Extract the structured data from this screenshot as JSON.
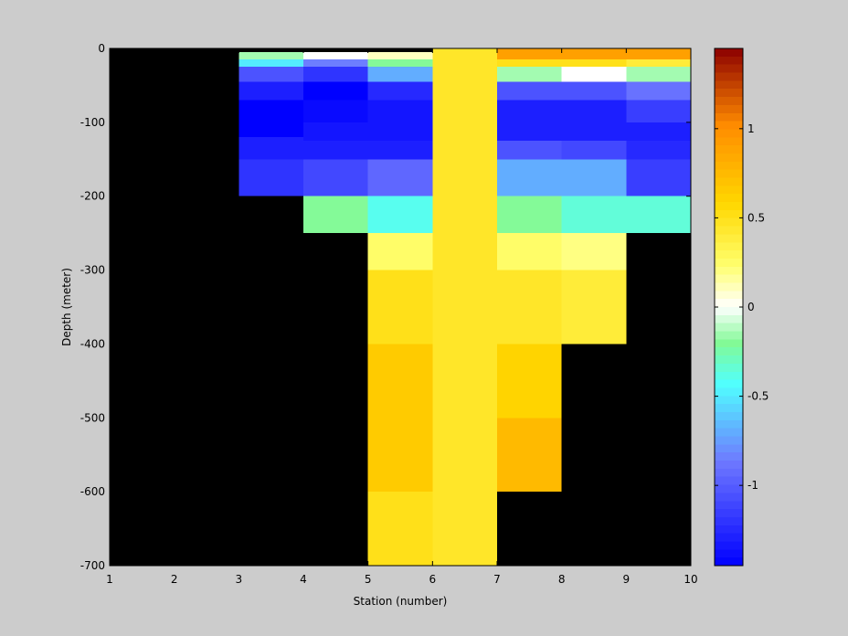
{
  "chart_data": {
    "type": "heatmap",
    "xlabel": "Station (number)",
    "ylabel": "Depth (meter)",
    "xlim": [
      1,
      10
    ],
    "ylim": [
      -700,
      0
    ],
    "x_ticks": [
      "1",
      "2",
      "3",
      "4",
      "5",
      "6",
      "7",
      "8",
      "9",
      "10"
    ],
    "y_ticks": [
      "0",
      "-100",
      "-200",
      "-300",
      "-400",
      "-500",
      "-600",
      "-700"
    ],
    "missing_color": "#000000",
    "colorbar": {
      "range": [
        -1.45,
        1.45
      ],
      "ticks": [
        "1",
        "0.5",
        "0",
        "-0.5",
        "-1"
      ],
      "colormap": "blue-cyan-green-white-yellow-orange-red"
    },
    "cells": [
      {
        "station": 3,
        "depth_top": 0,
        "depth_bottom": -5,
        "value": null
      },
      {
        "station": 3,
        "depth_top": -5,
        "depth_bottom": -15,
        "value": -0.15
      },
      {
        "station": 3,
        "depth_top": -15,
        "depth_bottom": -25,
        "value": -0.5
      },
      {
        "station": 3,
        "depth_top": -25,
        "depth_bottom": -45,
        "value": -1.05
      },
      {
        "station": 3,
        "depth_top": -45,
        "depth_bottom": -70,
        "value": -1.3
      },
      {
        "station": 3,
        "depth_top": -70,
        "depth_bottom": -120,
        "value": -1.45
      },
      {
        "station": 3,
        "depth_top": -120,
        "depth_bottom": -150,
        "value": -1.3
      },
      {
        "station": 3,
        "depth_top": -150,
        "depth_bottom": -200,
        "value": -1.2
      },
      {
        "station": 4,
        "depth_top": 0,
        "depth_bottom": -5,
        "value": null
      },
      {
        "station": 4,
        "depth_top": -5,
        "depth_bottom": -15,
        "value": 0.0
      },
      {
        "station": 4,
        "depth_top": -15,
        "depth_bottom": -25,
        "value": -0.85
      },
      {
        "station": 4,
        "depth_top": -25,
        "depth_bottom": -45,
        "value": -1.2
      },
      {
        "station": 4,
        "depth_top": -45,
        "depth_bottom": -70,
        "value": -1.45
      },
      {
        "station": 4,
        "depth_top": -70,
        "depth_bottom": -100,
        "value": -1.4
      },
      {
        "station": 4,
        "depth_top": -100,
        "depth_bottom": -125,
        "value": -1.35
      },
      {
        "station": 4,
        "depth_top": -125,
        "depth_bottom": -150,
        "value": -1.3
      },
      {
        "station": 4,
        "depth_top": -150,
        "depth_bottom": -200,
        "value": -1.1
      },
      {
        "station": 4,
        "depth_top": -200,
        "depth_bottom": -250,
        "value": -0.2
      },
      {
        "station": 5,
        "depth_top": 0,
        "depth_bottom": -5,
        "value": null
      },
      {
        "station": 5,
        "depth_top": -5,
        "depth_bottom": -15,
        "value": 0.1
      },
      {
        "station": 5,
        "depth_top": -15,
        "depth_bottom": -25,
        "value": -0.2
      },
      {
        "station": 5,
        "depth_top": -25,
        "depth_bottom": -45,
        "value": -0.7
      },
      {
        "station": 5,
        "depth_top": -45,
        "depth_bottom": -70,
        "value": -1.25
      },
      {
        "station": 5,
        "depth_top": -70,
        "depth_bottom": -125,
        "value": -1.35
      },
      {
        "station": 5,
        "depth_top": -125,
        "depth_bottom": -150,
        "value": -1.3
      },
      {
        "station": 5,
        "depth_top": -150,
        "depth_bottom": -200,
        "value": -0.95
      },
      {
        "station": 5,
        "depth_top": -200,
        "depth_bottom": -250,
        "value": -0.4
      },
      {
        "station": 5,
        "depth_top": -250,
        "depth_bottom": -300,
        "value": 0.25
      },
      {
        "station": 5,
        "depth_top": -300,
        "depth_bottom": -400,
        "value": 0.5
      },
      {
        "station": 5,
        "depth_top": -400,
        "depth_bottom": -600,
        "value": 0.65
      },
      {
        "station": 5,
        "depth_top": -600,
        "depth_bottom": -700,
        "value": 0.5
      },
      {
        "station": 6,
        "depth_top": 0,
        "depth_bottom": -700,
        "value": 0.45
      },
      {
        "station": 7,
        "depth_top": 0,
        "depth_bottom": -15,
        "value": 0.9
      },
      {
        "station": 7,
        "depth_top": -15,
        "depth_bottom": -25,
        "value": 0.5
      },
      {
        "station": 7,
        "depth_top": -25,
        "depth_bottom": -45,
        "value": -0.15
      },
      {
        "station": 7,
        "depth_top": -45,
        "depth_bottom": -70,
        "value": -1.05
      },
      {
        "station": 7,
        "depth_top": -70,
        "depth_bottom": -125,
        "value": -1.3
      },
      {
        "station": 7,
        "depth_top": -125,
        "depth_bottom": -150,
        "value": -1.05
      },
      {
        "station": 7,
        "depth_top": -150,
        "depth_bottom": -200,
        "value": -0.7
      },
      {
        "station": 7,
        "depth_top": -200,
        "depth_bottom": -250,
        "value": -0.2
      },
      {
        "station": 7,
        "depth_top": -250,
        "depth_bottom": -300,
        "value": 0.25
      },
      {
        "station": 7,
        "depth_top": -300,
        "depth_bottom": -400,
        "value": 0.45
      },
      {
        "station": 7,
        "depth_top": -400,
        "depth_bottom": -500,
        "value": 0.6
      },
      {
        "station": 7,
        "depth_top": -500,
        "depth_bottom": -600,
        "value": 0.75
      },
      {
        "station": 8,
        "depth_top": 0,
        "depth_bottom": -15,
        "value": 0.9
      },
      {
        "station": 8,
        "depth_top": -15,
        "depth_bottom": -25,
        "value": 0.5
      },
      {
        "station": 8,
        "depth_top": -25,
        "depth_bottom": -45,
        "value": 0.0
      },
      {
        "station": 8,
        "depth_top": -45,
        "depth_bottom": -70,
        "value": -1.05
      },
      {
        "station": 8,
        "depth_top": -70,
        "depth_bottom": -125,
        "value": -1.3
      },
      {
        "station": 8,
        "depth_top": -125,
        "depth_bottom": -150,
        "value": -1.1
      },
      {
        "station": 8,
        "depth_top": -150,
        "depth_bottom": -200,
        "value": -0.7
      },
      {
        "station": 8,
        "depth_top": -200,
        "depth_bottom": -250,
        "value": -0.35
      },
      {
        "station": 8,
        "depth_top": -250,
        "depth_bottom": -300,
        "value": 0.2
      },
      {
        "station": 8,
        "depth_top": -300,
        "depth_bottom": -400,
        "value": 0.4
      },
      {
        "station": 9,
        "depth_top": 0,
        "depth_bottom": -15,
        "value": 0.9
      },
      {
        "station": 9,
        "depth_top": -15,
        "depth_bottom": -25,
        "value": 0.4
      },
      {
        "station": 9,
        "depth_top": -25,
        "depth_bottom": -45,
        "value": -0.15
      },
      {
        "station": 9,
        "depth_top": -45,
        "depth_bottom": -70,
        "value": -0.9
      },
      {
        "station": 9,
        "depth_top": -70,
        "depth_bottom": -100,
        "value": -1.15
      },
      {
        "station": 9,
        "depth_top": -100,
        "depth_bottom": -125,
        "value": -1.3
      },
      {
        "station": 9,
        "depth_top": -125,
        "depth_bottom": -150,
        "value": -1.25
      },
      {
        "station": 9,
        "depth_top": -150,
        "depth_bottom": -200,
        "value": -1.15
      },
      {
        "station": 9,
        "depth_top": -200,
        "depth_bottom": -250,
        "value": -0.35
      }
    ]
  }
}
